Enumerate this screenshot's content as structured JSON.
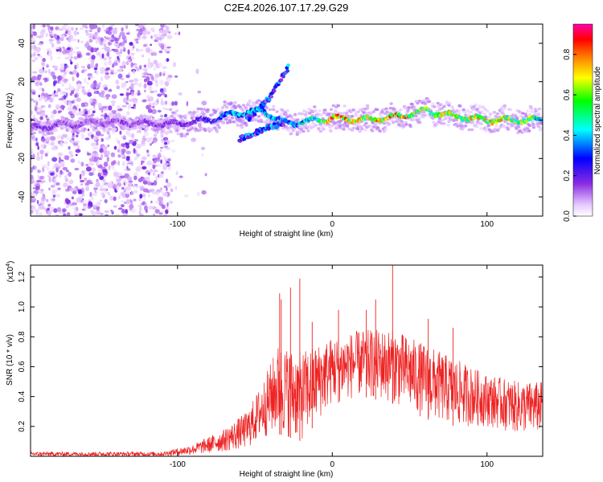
{
  "figure": {
    "title": "C2E4.2026.107.17.29.G29"
  },
  "chart_data": [
    {
      "type": "heatmap",
      "name": "spectrogram",
      "xlabel": "Height of straight line (km)",
      "ylabel": "Frequency (Hz)",
      "xlim": [
        -195,
        136
      ],
      "ylim": [
        -50,
        50
      ],
      "xticks": [
        -100,
        0,
        100
      ],
      "xtick_labels": [
        "-100",
        "0",
        "100"
      ],
      "yticks": [
        -40,
        -20,
        0,
        20,
        40
      ],
      "ytick_labels": [
        "-40",
        "-20",
        "0",
        "20",
        "40"
      ],
      "colorbar": {
        "label": "Normalized spectral amplitude",
        "range": [
          0,
          0.95
        ],
        "ticks": [
          0,
          0.2,
          0.4,
          0.6,
          0.8
        ],
        "tick_labels": [
          "0.0",
          "0.2",
          "0.4",
          "0.6",
          "0.8"
        ],
        "colormap": [
          "#ffffff",
          "#e6c8ff",
          "#8a2be2",
          "#0000ff",
          "#00ffff",
          "#00ff00",
          "#ffff00",
          "#ff8800",
          "#ff0000",
          "#ff00aa"
        ]
      },
      "noise_region_x": [
        -195,
        -105
      ],
      "main_track": [
        {
          "x": -195,
          "y": -4,
          "a": 0.2
        },
        {
          "x": -150,
          "y": -1,
          "a": 0.15
        },
        {
          "x": -100,
          "y": -2,
          "a": 0.2
        },
        {
          "x": -80,
          "y": 0,
          "a": 0.3
        },
        {
          "x": -65,
          "y": 3,
          "a": 0.45
        },
        {
          "x": -45,
          "y": 5,
          "a": 0.5
        },
        {
          "x": -30,
          "y": -2,
          "a": 0.45
        },
        {
          "x": -10,
          "y": 0,
          "a": 0.55
        },
        {
          "x": 0,
          "y": 1,
          "a": 0.9
        },
        {
          "x": 20,
          "y": 0,
          "a": 0.8
        },
        {
          "x": 45,
          "y": 2,
          "a": 0.85
        },
        {
          "x": 60,
          "y": 5,
          "a": 0.7
        },
        {
          "x": 80,
          "y": 2,
          "a": 0.75
        },
        {
          "x": 100,
          "y": 0,
          "a": 0.8
        },
        {
          "x": 120,
          "y": 0,
          "a": 0.75
        },
        {
          "x": 136,
          "y": 0,
          "a": 0.6
        }
      ],
      "branch_tracks": [
        {
          "name": "upper-branch",
          "points": [
            {
              "x": -55,
              "y": 0
            },
            {
              "x": -40,
              "y": 12
            },
            {
              "x": -28,
              "y": 28
            }
          ]
        },
        {
          "name": "lower-branch",
          "points": [
            {
              "x": -60,
              "y": -10
            },
            {
              "x": -45,
              "y": -5
            },
            {
              "x": -30,
              "y": -1
            }
          ]
        }
      ]
    },
    {
      "type": "line",
      "name": "snr",
      "xlabel": "Height of straight line (km)",
      "ylabel": "SNR (10 * v/v)",
      "y_multiplier": "(x10^4)",
      "y_multiplier_base": "(x10",
      "y_multiplier_exp": "4",
      "y_multiplier_close": ")",
      "xlim": [
        -195,
        136
      ],
      "ylim": [
        0,
        1.28
      ],
      "xticks": [
        -100,
        0,
        100
      ],
      "xtick_labels": [
        "-100",
        "0",
        "100"
      ],
      "yticks": [
        0.2,
        0.4,
        0.6,
        0.8,
        1.0,
        1.2
      ],
      "ytick_labels": [
        "0.2",
        "0.4",
        "0.6",
        "0.8",
        "1.0",
        "1.2"
      ],
      "color": "#ee2222",
      "envelope": [
        {
          "x": -195,
          "lo": 0.0,
          "hi": 0.03
        },
        {
          "x": -110,
          "lo": 0.0,
          "hi": 0.03
        },
        {
          "x": -90,
          "lo": 0.01,
          "hi": 0.08
        },
        {
          "x": -70,
          "lo": 0.03,
          "hi": 0.18
        },
        {
          "x": -55,
          "lo": 0.05,
          "hi": 0.3
        },
        {
          "x": -45,
          "lo": 0.12,
          "hi": 0.5
        },
        {
          "x": -35,
          "lo": 0.15,
          "hi": 0.75
        },
        {
          "x": -20,
          "lo": 0.1,
          "hi": 0.7
        },
        {
          "x": 0,
          "lo": 0.35,
          "hi": 0.8
        },
        {
          "x": 20,
          "lo": 0.4,
          "hi": 0.85
        },
        {
          "x": 40,
          "lo": 0.35,
          "hi": 0.85
        },
        {
          "x": 60,
          "lo": 0.25,
          "hi": 0.75
        },
        {
          "x": 80,
          "lo": 0.2,
          "hi": 0.65
        },
        {
          "x": 100,
          "lo": 0.2,
          "hi": 0.55
        },
        {
          "x": 120,
          "lo": 0.15,
          "hi": 0.5
        },
        {
          "x": 136,
          "lo": 0.15,
          "hi": 0.5
        }
      ],
      "spikes": [
        {
          "x": -34,
          "y": 1.09
        },
        {
          "x": -33,
          "y": 1.05
        },
        {
          "x": -27,
          "y": 1.13
        },
        {
          "x": -21,
          "y": 1.19
        },
        {
          "x": -13,
          "y": 0.9
        },
        {
          "x": 4,
          "y": 0.98
        },
        {
          "x": 22,
          "y": 0.98
        },
        {
          "x": 28,
          "y": 1.05
        },
        {
          "x": 39,
          "y": 1.28
        },
        {
          "x": 62,
          "y": 0.92
        },
        {
          "x": 78,
          "y": 0.86
        }
      ]
    }
  ]
}
